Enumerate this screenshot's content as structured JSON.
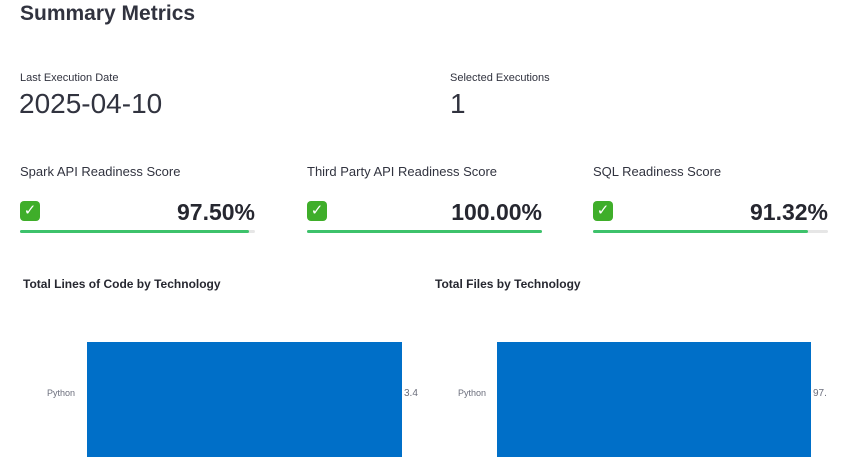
{
  "header": {
    "title": "Summary Metrics"
  },
  "metrics": [
    {
      "label": "Last Execution Date",
      "value": "2025-04-10"
    },
    {
      "label": "Selected Executions",
      "value": "1"
    }
  ],
  "scores": [
    {
      "label": "Spark API Readiness Score",
      "icon": "check-mark-button-icon",
      "value": "97.50%",
      "fraction": 0.975
    },
    {
      "label": "Third Party API Readiness Score",
      "icon": "check-mark-button-icon",
      "value": "100.00%",
      "fraction": 1.0
    },
    {
      "label": "SQL Readiness Score",
      "icon": "check-mark-button-icon",
      "value": "91.32%",
      "fraction": 0.9132
    }
  ],
  "colors": {
    "progress": "#3dc26b",
    "bar": "#006fc8",
    "check": "#3fae2a"
  },
  "chart_data": [
    {
      "type": "bar",
      "orientation": "horizontal",
      "title": "Total Lines of Code by Technology",
      "categories": [
        "Python"
      ],
      "value_labels": [
        "3.4"
      ]
    },
    {
      "type": "bar",
      "orientation": "horizontal",
      "title": "Total Files by Technology",
      "categories": [
        "Python"
      ],
      "value_labels": [
        "97."
      ]
    }
  ]
}
